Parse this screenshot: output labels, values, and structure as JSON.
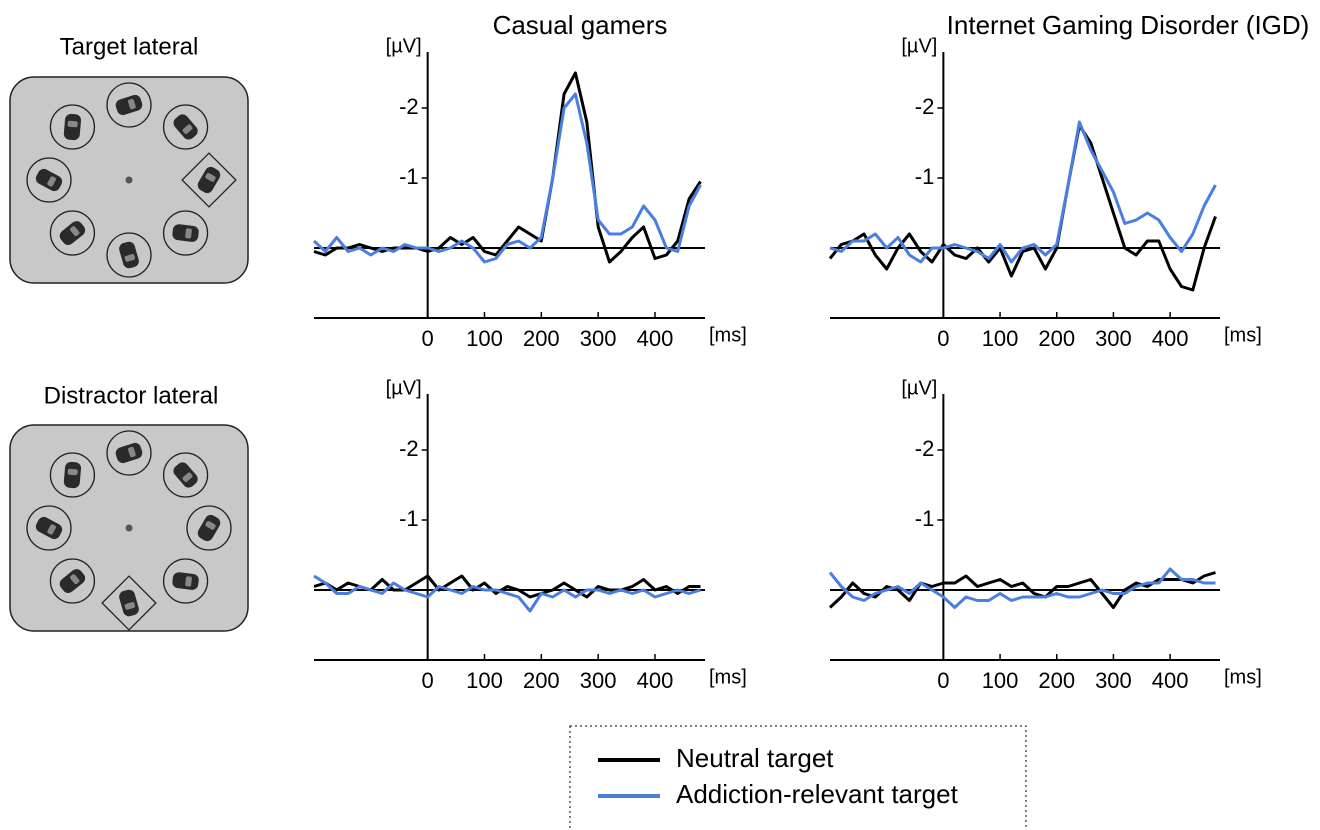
{
  "chart_data": [
    {
      "type": "line",
      "title": "Casual gamers",
      "x_label": "[ms]",
      "y_label": "[µV]",
      "x": [
        -200,
        -180,
        -160,
        -140,
        -120,
        -100,
        -80,
        -60,
        -40,
        -20,
        0,
        20,
        40,
        60,
        80,
        100,
        120,
        140,
        160,
        180,
        200,
        220,
        240,
        260,
        280,
        300,
        320,
        340,
        360,
        380,
        400,
        420,
        440,
        460,
        480
      ],
      "xlim": [
        -200,
        488
      ],
      "xticks": [
        0,
        100,
        200,
        300,
        400
      ],
      "ylim": [
        1.0,
        -2.8
      ],
      "yticks": [
        -2,
        -1
      ],
      "series": [
        {
          "name": "Neutral target",
          "color": "#000000",
          "values": [
            0.05,
            0.1,
            0.0,
            0.0,
            -0.05,
            0.0,
            0.05,
            0.0,
            0.0,
            0.0,
            0.05,
            0.0,
            -0.15,
            -0.05,
            -0.15,
            0.05,
            0.1,
            -0.1,
            -0.3,
            -0.2,
            -0.1,
            -1.0,
            -2.2,
            -2.5,
            -1.8,
            -0.3,
            0.2,
            0.05,
            -0.15,
            -0.3,
            0.15,
            0.1,
            -0.1,
            -0.7,
            -0.95
          ]
        },
        {
          "name": "Addiction-relevant target",
          "color": "#4a7fe0",
          "values": [
            -0.1,
            0.05,
            -0.15,
            0.05,
            0.0,
            0.1,
            0.0,
            0.05,
            -0.05,
            0.0,
            0.0,
            0.05,
            0.0,
            -0.1,
            0.0,
            0.2,
            0.15,
            -0.05,
            -0.1,
            0.0,
            -0.15,
            -1.0,
            -2.0,
            -2.2,
            -1.5,
            -0.4,
            -0.2,
            -0.2,
            -0.3,
            -0.6,
            -0.4,
            0.0,
            0.05,
            -0.6,
            -0.9
          ]
        }
      ]
    },
    {
      "type": "line",
      "title": "Internet Gaming Disorder (IGD)",
      "x_label": "[ms]",
      "y_label": "[µV]",
      "x": [
        -200,
        -180,
        -160,
        -140,
        -120,
        -100,
        -80,
        -60,
        -40,
        -20,
        0,
        20,
        40,
        60,
        80,
        100,
        120,
        140,
        160,
        180,
        200,
        220,
        240,
        260,
        280,
        300,
        320,
        340,
        360,
        380,
        400,
        420,
        440,
        460,
        480
      ],
      "xlim": [
        -200,
        488
      ],
      "xticks": [
        0,
        100,
        200,
        300,
        400
      ],
      "ylim": [
        1.0,
        -2.8
      ],
      "yticks": [
        -2,
        -1
      ],
      "series": [
        {
          "color": "#000000",
          "values": [
            0.15,
            -0.05,
            -0.1,
            -0.2,
            0.1,
            0.3,
            0.0,
            -0.2,
            0.05,
            0.2,
            -0.05,
            0.1,
            0.15,
            0.0,
            0.2,
            0.0,
            0.4,
            0.05,
            0.0,
            0.3,
            0.0,
            -0.9,
            -1.75,
            -1.5,
            -1.0,
            -0.5,
            0.0,
            0.1,
            -0.1,
            -0.1,
            0.3,
            0.55,
            0.6,
            0.0,
            -0.45
          ]
        },
        {
          "color": "#4a7fe0",
          "values": [
            0.0,
            0.05,
            -0.1,
            -0.1,
            -0.2,
            0.0,
            -0.15,
            0.1,
            0.2,
            0.0,
            0.0,
            -0.05,
            0.0,
            0.05,
            0.15,
            -0.05,
            0.2,
            0.0,
            -0.05,
            0.1,
            -0.05,
            -0.9,
            -1.8,
            -1.4,
            -1.1,
            -0.8,
            -0.35,
            -0.4,
            -0.5,
            -0.4,
            -0.15,
            0.05,
            -0.2,
            -0.6,
            -0.9
          ]
        }
      ]
    },
    {
      "type": "line",
      "x_label": "[ms]",
      "y_label": "[µV]",
      "x": [
        -200,
        -180,
        -160,
        -140,
        -120,
        -100,
        -80,
        -60,
        -40,
        -20,
        0,
        20,
        40,
        60,
        80,
        100,
        120,
        140,
        160,
        180,
        200,
        220,
        240,
        260,
        280,
        300,
        320,
        340,
        360,
        380,
        400,
        420,
        440,
        460,
        480
      ],
      "xlim": [
        -200,
        488
      ],
      "xticks": [
        0,
        100,
        200,
        300,
        400
      ],
      "ylim": [
        1.0,
        -2.8
      ],
      "yticks": [
        -2,
        -1
      ],
      "series": [
        {
          "color": "#000000",
          "values": [
            -0.05,
            -0.1,
            0.0,
            -0.1,
            -0.05,
            0.0,
            -0.15,
            0.0,
            0.0,
            -0.1,
            -0.2,
            0.0,
            -0.1,
            -0.2,
            0.0,
            -0.1,
            0.05,
            -0.05,
            0.0,
            0.1,
            0.05,
            0.0,
            -0.1,
            0.0,
            0.1,
            -0.05,
            0.0,
            0.0,
            -0.05,
            -0.15,
            0.0,
            -0.05,
            0.05,
            -0.05,
            -0.05
          ]
        },
        {
          "color": "#4a7fe0",
          "values": [
            -0.2,
            -0.1,
            0.05,
            0.05,
            -0.05,
            0.0,
            0.05,
            -0.1,
            0.0,
            0.05,
            0.1,
            -0.05,
            0.0,
            0.05,
            -0.05,
            0.0,
            0.0,
            0.05,
            0.1,
            0.3,
            0.05,
            0.1,
            0.0,
            0.1,
            0.0,
            0.0,
            0.05,
            0.0,
            0.05,
            0.0,
            0.1,
            0.05,
            0.0,
            0.05,
            0.0
          ]
        }
      ]
    },
    {
      "type": "line",
      "x_label": "[ms]",
      "y_label": "[µV]",
      "x": [
        -200,
        -180,
        -160,
        -140,
        -120,
        -100,
        -80,
        -60,
        -40,
        -20,
        0,
        20,
        40,
        60,
        80,
        100,
        120,
        140,
        160,
        180,
        200,
        220,
        240,
        260,
        280,
        300,
        320,
        340,
        360,
        380,
        400,
        420,
        440,
        460,
        480
      ],
      "xlim": [
        -200,
        488
      ],
      "xticks": [
        0,
        100,
        200,
        300,
        400
      ],
      "ylim": [
        1.0,
        -2.8
      ],
      "yticks": [
        -2,
        -1
      ],
      "series": [
        {
          "color": "#000000",
          "values": [
            0.25,
            0.1,
            -0.1,
            0.05,
            0.1,
            -0.05,
            0.0,
            0.15,
            -0.1,
            -0.05,
            -0.1,
            -0.1,
            -0.2,
            -0.05,
            -0.1,
            -0.15,
            -0.05,
            -0.1,
            0.05,
            0.1,
            -0.05,
            -0.05,
            -0.1,
            -0.15,
            0.05,
            0.25,
            0.0,
            -0.1,
            -0.05,
            -0.15,
            -0.15,
            -0.15,
            -0.1,
            -0.2,
            -0.25
          ]
        },
        {
          "color": "#4a7fe0",
          "values": [
            -0.25,
            -0.05,
            0.1,
            0.15,
            0.05,
            0.0,
            -0.05,
            0.05,
            -0.1,
            0.0,
            0.1,
            0.25,
            0.1,
            0.15,
            0.15,
            0.05,
            0.15,
            0.1,
            0.1,
            0.1,
            0.05,
            0.1,
            0.1,
            0.05,
            0.0,
            0.05,
            0.05,
            -0.05,
            -0.1,
            -0.1,
            -0.3,
            -0.15,
            -0.15,
            -0.1,
            -0.1
          ]
        }
      ]
    }
  ],
  "rows": [
    {
      "label": "Target lateral"
    },
    {
      "label": "Distractor lateral"
    }
  ]
}
